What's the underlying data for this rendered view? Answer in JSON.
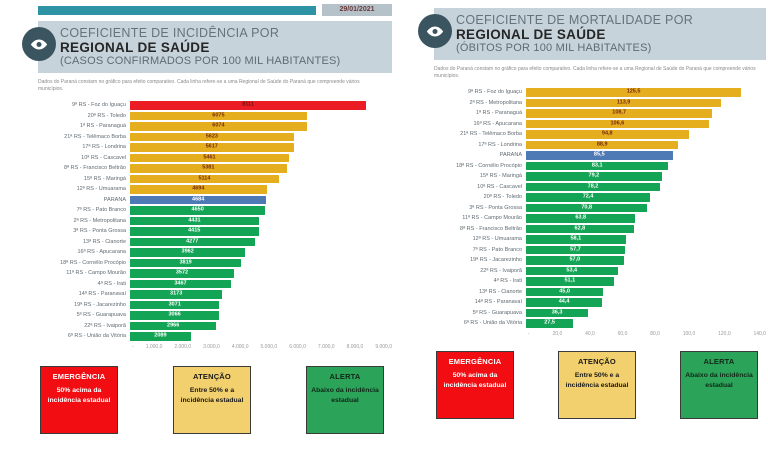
{
  "page": {
    "date_badge": "29/01/2021"
  },
  "panels": [
    {
      "id": "incidencia",
      "title_line1": "COEFICIENTE DE INCIDÊNCIA POR",
      "title_line2": "REGIONAL DE SAÚDE",
      "title_line3": "(CASOS CONFIRMADOS POR 100 MIL HABITANTES)",
      "note": "Dados do Paraná constam no gráfico para efeito comparativo. Cada linha refere-se a uma Regional de Saúde do Paraná que compreende vários municípios."
    },
    {
      "id": "mortalidade",
      "title_line1": "COEFICIENTE DE MORTALIDADE POR",
      "title_line2": "REGIONAL DE SAÚDE",
      "title_line3": "(ÓBITOS POR 100 MIL HABITANTES)",
      "note": "Dados do Paraná constam no gráfico para efeito comparativo. Cada linha refere-se a uma Regional de Saúde do Paraná que compreende vários municípios."
    }
  ],
  "chart_data": [
    {
      "type": "bar",
      "orientation": "horizontal",
      "title": "COEFICIENTE DE INCIDÊNCIA POR REGIONAL DE SAÚDE (CASOS CONFIRMADOS POR 100 MIL HABITANTES)",
      "xlabel": "Casos confirmados por 100 mil habitantes",
      "ylabel": "Regional de Saúde",
      "xlim": [
        0,
        9000
      ],
      "axis_ticks": [
        "-",
        "1.000,0",
        "2.000,0",
        "3.000,0",
        "4.000,0",
        "5.000,0",
        "6.000,0",
        "7.000,0",
        "8.000,0",
        "9.000,0"
      ],
      "categories": [
        "9ª RS - Foz do Iguaçu",
        "20ª RS - Toledo",
        "1ª RS - Paranaguá",
        "21ª RS - Telêmaco Borba",
        "17ª RS - Londrina",
        "10ª RS - Cascavel",
        "8ª RS - Francisco Beltrão",
        "15ª RS - Maringá",
        "12ª RS - Umuarama",
        "PARANÁ",
        "7ª RS - Pato Branco",
        "2ª RS - Metropolitana",
        "3ª RS - Ponta Grossa",
        "13ª RS - Cianorte",
        "16ª RS - Apucarana",
        "18ª RS - Cornélio Procópio",
        "11ª RS - Campo Mourão",
        "4ª RS - Irati",
        "14ª RS - Paranavaí",
        "19ª RS - Jacarezinho",
        "5ª RS - Guarapuava",
        "22ª RS - Ivaiporã",
        "6ª RS - União da Vitória"
      ],
      "values": [
        8111,
        6075,
        6074,
        5623,
        5617,
        5461,
        5381,
        5114,
        4694,
        4684,
        4650,
        4431,
        4415,
        4277,
        3962,
        3819,
        3572,
        3467,
        3173,
        3071,
        3066,
        2966,
        2089
      ],
      "value_labels": [
        "8111",
        "6075",
        "6074",
        "5623",
        "5617",
        "5461",
        "5381",
        "5114",
        "4694",
        "4684",
        "4650",
        "4431",
        "4415",
        "4277",
        "3962",
        "3819",
        "3572",
        "3467",
        "3173",
        "3071",
        "3066",
        "2966",
        "2089"
      ],
      "status": [
        "emergencia",
        "atencao",
        "atencao",
        "atencao",
        "atencao",
        "atencao",
        "atencao",
        "atencao",
        "atencao",
        "estado",
        "alerta",
        "alerta",
        "alerta",
        "alerta",
        "alerta",
        "alerta",
        "alerta",
        "alerta",
        "alerta",
        "alerta",
        "alerta",
        "alerta",
        "alerta"
      ],
      "colors": {
        "emergencia": "#ec1c24",
        "atencao": "#e4ae1f",
        "estado": "#4d79b5",
        "alerta": "#14a455"
      },
      "value_text_colors": {
        "emergencia": "#6e1111",
        "atencao": "#7a2a12",
        "estado": "#ffffff",
        "alerta": "#ffffff"
      },
      "legend_position": "bottom",
      "grid": false
    },
    {
      "type": "bar",
      "orientation": "horizontal",
      "title": "COEFICIENTE DE MORTALIDADE POR REGIONAL DE SAÚDE (ÓBITOS POR 100 MIL HABITANTES)",
      "xlabel": "Óbitos por 100 mil habitantes",
      "ylabel": "Regional de Saúde",
      "xlim": [
        0,
        140
      ],
      "axis_ticks": [
        "-",
        "20,0",
        "40,0",
        "60,0",
        "80,0",
        "100,0",
        "120,0",
        "140,0"
      ],
      "categories": [
        "9ª RS - Foz do Iguaçu",
        "2ª RS - Metropolitana",
        "1ª RS - Paranaguá",
        "16ª RS - Apucarana",
        "21ª RS - Telêmaco Borba",
        "17ª RS - Londrina",
        "PARANÁ",
        "18ª RS - Cornélio Procópio",
        "15ª RS - Maringá",
        "10ª RS - Cascavel",
        "20ª RS - Toledo",
        "3ª RS - Ponta Grossa",
        "11ª RS - Campo Mourão",
        "8ª RS - Francisco Beltrão",
        "12ª RS - Umuarama",
        "7ª RS - Pato Branco",
        "19ª RS - Jacarezinho",
        "22ª RS - Ivaiporã",
        "4ª RS - Irati",
        "13ª RS - Cianorte",
        "14ª RS - Paranavaí",
        "5ª RS - Guarapuava",
        "6ª RS - União da Vitória"
      ],
      "values": [
        125.5,
        113.9,
        108.7,
        106.6,
        94.8,
        88.9,
        85.5,
        83.1,
        79.2,
        78.2,
        72.4,
        70.8,
        63.8,
        62.8,
        58.1,
        57.7,
        57.0,
        53.4,
        51.1,
        45.0,
        44.4,
        36.3,
        27.5
      ],
      "value_labels": [
        "125,5",
        "113,9",
        "108,7",
        "106,6",
        "94,8",
        "88,9",
        "85,5",
        "83,1",
        "79,2",
        "78,2",
        "72,4",
        "70,8",
        "63,8",
        "62,8",
        "58,1",
        "57,7",
        "57,0",
        "53,4",
        "51,1",
        "45,0",
        "44,4",
        "36,3",
        "27,5"
      ],
      "status": [
        "atencao",
        "atencao",
        "atencao",
        "atencao",
        "atencao",
        "atencao",
        "estado",
        "alerta",
        "alerta",
        "alerta",
        "alerta",
        "alerta",
        "alerta",
        "alerta",
        "alerta",
        "alerta",
        "alerta",
        "alerta",
        "alerta",
        "alerta",
        "alerta",
        "alerta",
        "alerta"
      ],
      "colors": {
        "emergencia": "#ec1c24",
        "atencao": "#e4ae1f",
        "estado": "#4d79b5",
        "alerta": "#14a455"
      },
      "value_text_colors": {
        "emergencia": "#6e1111",
        "atencao": "#7a2a12",
        "estado": "#ffffff",
        "alerta": "#ffffff"
      },
      "legend_position": "bottom",
      "grid": false
    }
  ],
  "legend": {
    "boxes": [
      {
        "key": "emergencia",
        "title": "EMERGÊNCIA",
        "body": "50% acima da incidência estadual",
        "bg": "#f20d12",
        "text": "#ffffff",
        "border": "#c40археolog0b0b"
      },
      {
        "key": "atencao",
        "title": "ATENÇÃO",
        "body": "Entre 50% e a incidência estadual",
        "bg": "#f2d06e",
        "text": "#181818",
        "border": "#3a3a3a"
      },
      {
        "key": "alerta",
        "title": "ALERTA",
        "body": "Abaixo da incidência estadual",
        "bg": "#2ba45a",
        "text": "#102716",
        "border": "#3a3a3a"
      }
    ]
  }
}
